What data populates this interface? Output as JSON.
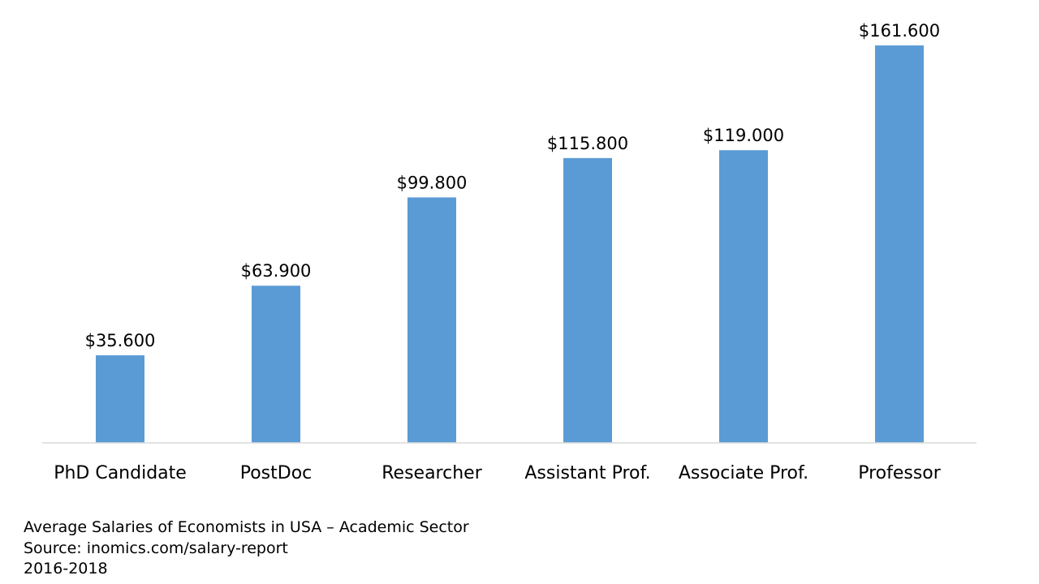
{
  "chart_data": {
    "type": "bar",
    "categories": [
      "PhD Candidate",
      "PostDoc",
      "Researcher",
      "Assistant Prof.",
      "Associate Prof.",
      "Professor"
    ],
    "values": [
      35600,
      63900,
      99800,
      115800,
      119000,
      161600
    ],
    "data_labels": [
      "$35.600",
      "$63.900",
      "$99.800",
      "$115.800",
      "$119.000",
      "$161.600"
    ],
    "bar_color": "#5B9BD5",
    "axis_color": "#D9D9D9",
    "ylim": [
      0,
      161600
    ],
    "grid": false,
    "legend": "none"
  },
  "caption": {
    "line1": "Average Salaries of Economists in USA – Academic Sector",
    "line2": "Source: inomics.com/salary-report",
    "line3": "2016-2018"
  }
}
